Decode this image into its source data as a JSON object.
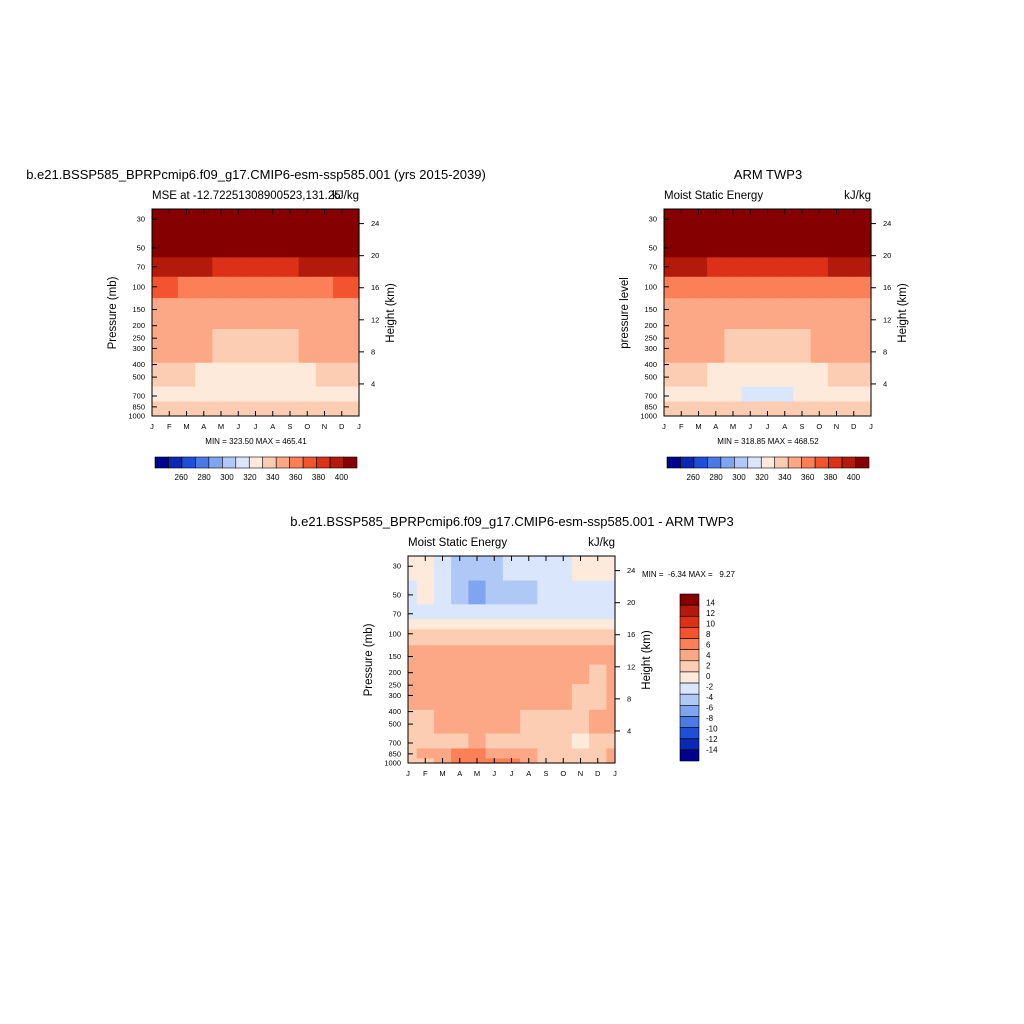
{
  "palette": {
    "absolute": [
      "#00008c",
      "#0a28b4",
      "#1f4fd6",
      "#4a7ae8",
      "#7fa5f0",
      "#b0c8f6",
      "#dae6fb",
      "#feeadb",
      "#fdcdb3",
      "#fca886",
      "#fb7f57",
      "#f4532f",
      "#dc3117",
      "#b41a0c",
      "#850000"
    ],
    "difference": [
      "#00008c",
      "#0a28b4",
      "#1f4fd6",
      "#4a7ae8",
      "#7fa5f0",
      "#b0c8f6",
      "#dae6fb",
      "#feeadb",
      "#fdcdb3",
      "#fca886",
      "#fb7f57",
      "#f4532f",
      "#dc3117",
      "#b41a0c",
      "#850000"
    ]
  },
  "chart_data": [
    {
      "type": "heatmap",
      "title": "b.e21.BSSP585_BPRPcmip6.f09_g17.CMIP6-esm-ssp585.001 (yrs 2015-2039)",
      "subtitle_left": "MSE at -12.72251308900523,131.25",
      "subtitle_right": "kJ/kg",
      "ylabel": "Pressure (mb)",
      "ylabel_right": "Height (km)",
      "x_ticks": [
        "J",
        "F",
        "M",
        "A",
        "M",
        "J",
        "J",
        "A",
        "S",
        "O",
        "N",
        "D",
        "J"
      ],
      "y_ticks": [
        "30",
        "50",
        "70",
        "100",
        "150",
        "200",
        "250",
        "300",
        "400",
        "500",
        "700",
        "850",
        "1000"
      ],
      "y_ticks_right": [
        "24",
        "20",
        "16",
        "12",
        "8",
        "4"
      ],
      "ylim": [
        1000,
        25
      ],
      "y_scale": "log",
      "min_max_text": "MIN = 323.50 MAX = 465.41",
      "colorbar_labels": [
        "260",
        "280",
        "300",
        "320",
        "340",
        "360",
        "380",
        "400"
      ],
      "levels": [
        {
          "pressure": 1000,
          "values": [
            341,
            341,
            342,
            343,
            343,
            343,
            343,
            343,
            342,
            342,
            342,
            342,
            341
          ],
          "low_feature": true
        },
        {
          "pressure": 850,
          "values": [
            338,
            339,
            340,
            340,
            340,
            340,
            340,
            340,
            340,
            340,
            340,
            339,
            338
          ]
        },
        {
          "pressure": 700,
          "values": [
            334,
            333,
            332,
            330,
            328,
            326,
            325,
            326,
            328,
            331,
            333,
            334,
            334
          ]
        },
        {
          "pressure": 500,
          "values": [
            337,
            336,
            335,
            334,
            333,
            332,
            332,
            332,
            333,
            334,
            336,
            337,
            337
          ]
        },
        {
          "pressure": 300,
          "values": [
            345,
            345,
            345,
            345,
            344,
            344,
            343,
            343,
            344,
            345,
            345,
            345,
            345
          ]
        },
        {
          "pressure": 150,
          "values": [
            352,
            352,
            352,
            351,
            351,
            351,
            350,
            350,
            351,
            352,
            352,
            352,
            352
          ]
        },
        {
          "pressure": 100,
          "values": [
            365,
            365,
            364,
            363,
            362,
            361,
            360,
            360,
            361,
            362,
            364,
            365,
            365
          ]
        },
        {
          "pressure": 70,
          "values": [
            390,
            389,
            388,
            385,
            383,
            381,
            380,
            380,
            382,
            385,
            388,
            389,
            390
          ]
        },
        {
          "pressure": 50,
          "values": [
            415,
            415,
            414,
            413,
            412,
            411,
            410,
            410,
            411,
            413,
            414,
            415,
            415
          ]
        },
        {
          "pressure": 30,
          "values": [
            455,
            455,
            455,
            455,
            455,
            455,
            455,
            455,
            455,
            455,
            455,
            455,
            455
          ]
        }
      ]
    },
    {
      "type": "heatmap",
      "title": "ARM TWP3",
      "subtitle_left": "Moist Static Energy",
      "subtitle_right": "kJ/kg",
      "ylabel": "pressure level",
      "ylabel_right": "Height (km)",
      "x_ticks": [
        "J",
        "F",
        "M",
        "A",
        "M",
        "J",
        "J",
        "A",
        "S",
        "O",
        "N",
        "D",
        "J"
      ],
      "y_ticks": [
        "30",
        "50",
        "70",
        "100",
        "150",
        "200",
        "250",
        "300",
        "400",
        "500",
        "700",
        "850",
        "1000"
      ],
      "y_ticks_right": [
        "24",
        "20",
        "16",
        "12",
        "8",
        "4"
      ],
      "ylim": [
        1000,
        25
      ],
      "y_scale": "log",
      "min_max_text": "MIN = 318.85 MAX = 468.52",
      "colorbar_labels": [
        "260",
        "280",
        "300",
        "320",
        "340",
        "360",
        "380",
        "400"
      ],
      "levels": [
        {
          "pressure": 1000,
          "values": [
            342,
            342,
            342,
            343,
            343,
            343,
            343,
            343,
            342,
            342,
            342,
            342,
            342
          ]
        },
        {
          "pressure": 850,
          "values": [
            339,
            339,
            340,
            340,
            340,
            339,
            339,
            339,
            339,
            340,
            340,
            339,
            339
          ]
        },
        {
          "pressure": 700,
          "values": [
            334,
            332,
            330,
            328,
            326,
            323,
            321,
            324,
            326,
            330,
            333,
            334,
            334
          ]
        },
        {
          "pressure": 500,
          "values": [
            338,
            337,
            335,
            334,
            333,
            332,
            331,
            331,
            332,
            334,
            336,
            338,
            338
          ]
        },
        {
          "pressure": 300,
          "values": [
            346,
            346,
            345,
            345,
            344,
            344,
            343,
            343,
            344,
            345,
            346,
            346,
            346
          ]
        },
        {
          "pressure": 150,
          "values": [
            352,
            352,
            352,
            352,
            351,
            351,
            351,
            351,
            351,
            352,
            352,
            352,
            352
          ]
        },
        {
          "pressure": 100,
          "values": [
            362,
            362,
            361,
            360,
            359,
            359,
            358,
            358,
            359,
            360,
            361,
            362,
            362
          ]
        },
        {
          "pressure": 70,
          "values": [
            388,
            387,
            386,
            384,
            382,
            380,
            379,
            379,
            381,
            384,
            387,
            388,
            388
          ]
        },
        {
          "pressure": 50,
          "values": [
            414,
            414,
            413,
            412,
            411,
            410,
            410,
            410,
            411,
            412,
            413,
            414,
            414
          ]
        },
        {
          "pressure": 30,
          "values": [
            455,
            455,
            455,
            455,
            455,
            455,
            455,
            455,
            455,
            455,
            455,
            455,
            455
          ]
        }
      ]
    },
    {
      "type": "heatmap",
      "title": "b.e21.BSSP585_BPRPcmip6.f09_g17.CMIP6-esm-ssp585.001 - ARM TWP3",
      "subtitle_left": "Moist Static Energy",
      "subtitle_right": "kJ/kg",
      "ylabel": "Pressure (mb)",
      "ylabel_right": "Height (km)",
      "x_ticks": [
        "J",
        "F",
        "M",
        "A",
        "M",
        "J",
        "J",
        "A",
        "S",
        "O",
        "N",
        "D",
        "J"
      ],
      "y_ticks": [
        "30",
        "50",
        "70",
        "100",
        "150",
        "200",
        "250",
        "300",
        "400",
        "500",
        "700",
        "850",
        "1000"
      ],
      "y_ticks_right": [
        "24",
        "20",
        "16",
        "12",
        "8",
        "4"
      ],
      "ylim": [
        1000,
        25
      ],
      "y_scale": "log",
      "min_max_text": "MIN =  -6.34 MAX =   9.27",
      "colorbar_labels": [
        "14",
        "12",
        "10",
        "8",
        "6",
        "4",
        "2",
        "0",
        "-2",
        "-4",
        "-6",
        "-8",
        "-10",
        "-12",
        "-14"
      ],
      "levels": [
        {
          "pressure": 1000,
          "values": [
            1,
            2,
            4,
            5,
            6,
            6,
            5,
            3,
            2,
            1,
            1,
            2,
            3
          ]
        },
        {
          "pressure": 850,
          "values": [
            2,
            3,
            4,
            5,
            5,
            4,
            4,
            3,
            2,
            2,
            1,
            2,
            3
          ]
        },
        {
          "pressure": 700,
          "values": [
            1,
            1,
            2,
            2,
            3,
            2,
            2,
            2,
            1,
            1,
            0,
            1,
            1
          ]
        },
        {
          "pressure": 500,
          "values": [
            2,
            2,
            3,
            4,
            3,
            4,
            4,
            2,
            2,
            2,
            2,
            3,
            3
          ]
        },
        {
          "pressure": 300,
          "values": [
            3,
            3,
            3,
            3,
            3,
            3,
            3,
            3,
            3,
            3,
            2,
            2,
            3
          ]
        },
        {
          "pressure": 200,
          "values": [
            3,
            3,
            3,
            3,
            3,
            3,
            4,
            4,
            3,
            3,
            3,
            2,
            3
          ]
        },
        {
          "pressure": 150,
          "values": [
            3,
            3,
            3,
            3,
            3,
            3,
            4,
            4,
            3,
            3,
            3,
            3,
            3
          ]
        },
        {
          "pressure": 100,
          "values": [
            1,
            1,
            1,
            1,
            1,
            1,
            1,
            1,
            1,
            1,
            1,
            1,
            1
          ]
        },
        {
          "pressure": 85,
          "values": [
            -1,
            -1,
            -1,
            -1,
            -1,
            -1,
            -1,
            -1,
            -1,
            -1,
            -1,
            -1,
            -1
          ]
        },
        {
          "pressure": 70,
          "values": [
            -2,
            -2,
            -3,
            -3,
            -3,
            -3,
            -3,
            -3,
            -3,
            -2,
            -2,
            -2,
            -2
          ]
        },
        {
          "pressure": 50,
          "values": [
            -2,
            -1,
            -2,
            -4,
            -6,
            -5,
            -5,
            -4,
            -3,
            -3,
            -3,
            -2,
            -2
          ]
        },
        {
          "pressure": 30,
          "values": [
            -1,
            -1,
            -2,
            -4,
            -4,
            -4,
            -3,
            -3,
            -2,
            -2,
            -1,
            -1,
            -1
          ]
        }
      ]
    }
  ]
}
